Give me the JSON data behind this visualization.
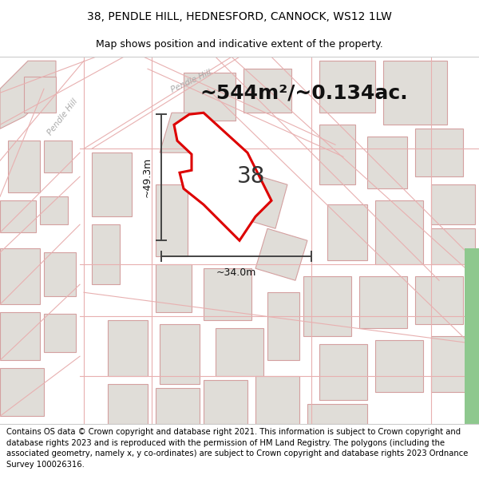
{
  "title_line1": "38, PENDLE HILL, HEDNESFORD, CANNOCK, WS12 1LW",
  "title_line2": "Map shows position and indicative extent of the property.",
  "area_text": "~544m²/~0.134ac.",
  "label_38": "38",
  "dim_vertical": "~49.3m",
  "dim_horizontal": "~34.0m",
  "footer_text": "Contains OS data © Crown copyright and database right 2021. This information is subject to Crown copyright and database rights 2023 and is reproduced with the permission of HM Land Registry. The polygons (including the associated geometry, namely x, y co-ordinates) are subject to Crown copyright and database rights 2023 Ordnance Survey 100026316.",
  "map_bg": "#ffffff",
  "page_bg": "#ffffff",
  "building_fill": "#e0ddd8",
  "building_edge": "#d4a0a0",
  "road_edge": "#e8b0b0",
  "property_color": "#dd0000",
  "green_color": "#8ec88e",
  "title_fontsize": 10,
  "subtitle_fontsize": 9,
  "area_fontsize": 18,
  "label_fontsize": 20,
  "dim_fontsize": 9,
  "footer_fontsize": 7.2,
  "pendle_hill_label1": "Pendle Hill",
  "pendle_hill_label2": "Pendle Hill",
  "dim_line_color": "#444444"
}
